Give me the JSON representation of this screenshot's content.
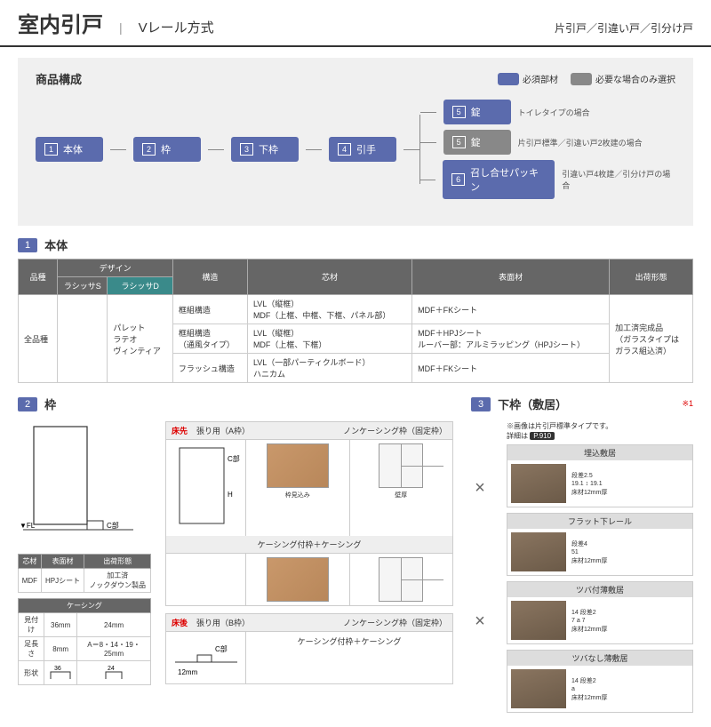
{
  "header": {
    "title": "室内引戸",
    "subtitle": "Vレール方式",
    "right": "片引戸／引違い戸／引分け戸"
  },
  "composition": {
    "title": "商品構成",
    "legend": {
      "required": "必須部材",
      "optional": "必要な場合のみ選択"
    },
    "steps": [
      {
        "n": "1",
        "label": "本体"
      },
      {
        "n": "2",
        "label": "枠"
      },
      {
        "n": "3",
        "label": "下枠"
      },
      {
        "n": "4",
        "label": "引手"
      }
    ],
    "branches": [
      {
        "n": "5",
        "label": "錠",
        "gray": false,
        "note": "トイレタイプの場合"
      },
      {
        "n": "5",
        "label": "錠",
        "gray": true,
        "note": "片引戸標準／引違い戸2枚建の場合"
      },
      {
        "n": "6",
        "label": "召し合せパッキン",
        "gray": false,
        "note": "引違い戸4枚建／引分け戸の場合"
      }
    ]
  },
  "section1": {
    "num": "1",
    "title": "本体"
  },
  "table1": {
    "headers": {
      "item": "品種",
      "design": "デザイン",
      "s": "ラシッサS",
      "d": "ラシッサD",
      "struct": "構造",
      "core": "芯材",
      "surface": "表面材",
      "ship": "出荷形態"
    },
    "item_val": "全品種",
    "designs": "パレット\nラテオ\nヴィンティア",
    "rows": [
      {
        "struct": "框組構造",
        "core": "LVL（縦框）\nMDF（上框、中框、下框、パネル部）",
        "surface": "MDF＋FKシート"
      },
      {
        "struct": "框組構造\n（通風タイプ）",
        "core": "LVL（縦框）\nMDF（上框、下框）",
        "surface": "MDF＋HPJシート\nルーバー部：アルミラッピング（HPJシート）"
      },
      {
        "struct": "フラッシュ構造",
        "core": "LVL（一部パーティクルボード）\nハニカム",
        "surface": "MDF＋FKシート"
      }
    ],
    "ship_val": "加工済完成品\n（ガラスタイプは\nガラス組込済）"
  },
  "section2": {
    "num": "2",
    "title": "枠"
  },
  "section3": {
    "num": "3",
    "title": "下枠（敷居）",
    "note": "※1"
  },
  "frame": {
    "fl_label": "▼FL",
    "c_label": "C部",
    "h_label": "H",
    "mat": {
      "headers": [
        "芯材",
        "表面材",
        "出荷形態"
      ],
      "row": [
        "MDF",
        "HPJシート",
        "加工済\nノックダウン製品"
      ]
    },
    "casing": {
      "title": "ケーシング",
      "rows": [
        [
          "見付け",
          "36mm",
          "24mm"
        ],
        [
          "足長さ",
          "8mm",
          "A＝8・14・19・25mm"
        ]
      ],
      "shape": "形状"
    }
  },
  "frame_types": {
    "a": {
      "tag": "床先",
      "label": "張り用（A枠）",
      "h1": "ノンケーシング枠（固定枠）",
      "h2": "ケーシング付枠＋ケーシング",
      "c": "C部",
      "h": "H"
    },
    "b": {
      "tag": "床後",
      "label": "張り用（B枠）",
      "h1": "ノンケーシング枠（固定枠）",
      "h2": "ケーシング付枠＋ケーシング",
      "c": "C部",
      "mm": "12mm"
    }
  },
  "sill": {
    "note": "※画像は片引戸標準タイプです。",
    "detail_label": "詳細は",
    "page_ref": "P.910",
    "items": [
      {
        "name": "埋込敷居",
        "dims": [
          "段差2.5",
          "19.1 ↕ 19.1",
          "床材12mm厚"
        ]
      },
      {
        "name": "フラット下レール",
        "dims": [
          "段差4",
          "51",
          "床材12mm厚"
        ]
      },
      {
        "name": "ツバ付薄敷居",
        "dims": [
          "14   段差2",
          "7  a  7",
          "床材12mm厚"
        ]
      },
      {
        "name": "ツバなし薄敷居",
        "dims": [
          "14   段差2",
          "a",
          "床材12mm厚"
        ]
      }
    ]
  }
}
